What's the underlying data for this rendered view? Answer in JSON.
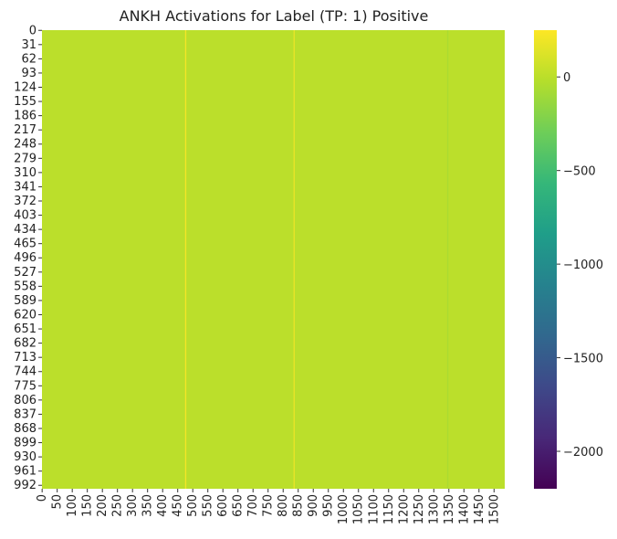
{
  "chart_data": {
    "type": "heatmap",
    "title": "ANKH Activations for Label (TP: 1) Positive",
    "xlabel": "",
    "ylabel": "",
    "n_rows": 1000,
    "n_cols": 1536,
    "row_tick_labels": [
      "0",
      "31",
      "62",
      "93",
      "124",
      "155",
      "186",
      "217",
      "248",
      "279",
      "310",
      "341",
      "372",
      "403",
      "434",
      "465",
      "496",
      "527",
      "558",
      "589",
      "620",
      "651",
      "682",
      "713",
      "744",
      "775",
      "806",
      "837",
      "868",
      "899",
      "930",
      "961",
      "992"
    ],
    "col_tick_labels": [
      "0",
      "50",
      "100",
      "150",
      "200",
      "250",
      "300",
      "350",
      "400",
      "450",
      "500",
      "550",
      "600",
      "650",
      "700",
      "750",
      "800",
      "850",
      "900",
      "950",
      "1000",
      "1050",
      "1100",
      "1150",
      "1200",
      "1250",
      "1300",
      "1350",
      "1400",
      "1450",
      "1500"
    ],
    "background_value": 0,
    "highlight_columns": [
      {
        "column": 475,
        "value": 220
      },
      {
        "column": 835,
        "value": 180
      },
      {
        "column": 1345,
        "value": -60
      }
    ],
    "colorbar": {
      "colormap": "viridis",
      "vmin": -2200,
      "vmax": 250,
      "tick_labels": [
        "0",
        "−500",
        "−1000",
        "−1500",
        "−2000"
      ],
      "tick_values": [
        0,
        -500,
        -1000,
        -1500,
        -2000
      ]
    },
    "colors": {
      "viridis_stops": [
        "#440154",
        "#482878",
        "#3e4989",
        "#31688e",
        "#26828e",
        "#1f9e89",
        "#35b779",
        "#6ece58",
        "#b5de2b",
        "#fde725"
      ]
    }
  }
}
